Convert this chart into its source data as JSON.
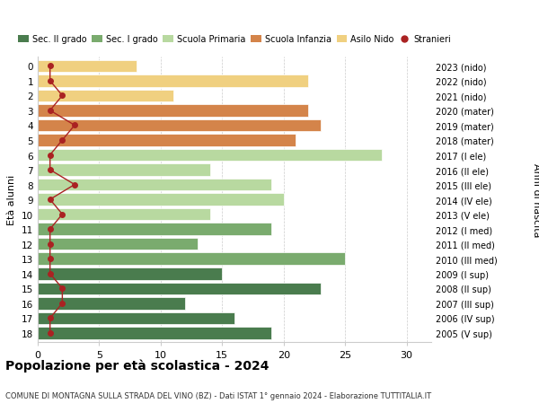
{
  "ages": [
    18,
    17,
    16,
    15,
    14,
    13,
    12,
    11,
    10,
    9,
    8,
    7,
    6,
    5,
    4,
    3,
    2,
    1,
    0
  ],
  "year_labels": [
    "2005 (V sup)",
    "2006 (IV sup)",
    "2007 (III sup)",
    "2008 (II sup)",
    "2009 (I sup)",
    "2010 (III med)",
    "2011 (II med)",
    "2012 (I med)",
    "2013 (V ele)",
    "2014 (IV ele)",
    "2015 (III ele)",
    "2016 (II ele)",
    "2017 (I ele)",
    "2018 (mater)",
    "2019 (mater)",
    "2020 (mater)",
    "2021 (nido)",
    "2022 (nido)",
    "2023 (nido)"
  ],
  "bar_values": [
    19,
    16,
    12,
    23,
    15,
    25,
    13,
    19,
    14,
    20,
    19,
    14,
    28,
    21,
    23,
    22,
    11,
    22,
    8
  ],
  "stranieri_values": [
    1,
    1,
    2,
    2,
    1,
    1,
    1,
    1,
    2,
    1,
    3,
    1,
    1,
    2,
    3,
    1,
    2,
    1,
    1
  ],
  "bar_colors": [
    "#4a7c4e",
    "#4a7c4e",
    "#4a7c4e",
    "#4a7c4e",
    "#4a7c4e",
    "#7aab6e",
    "#7aab6e",
    "#7aab6e",
    "#b8d9a0",
    "#b8d9a0",
    "#b8d9a0",
    "#b8d9a0",
    "#b8d9a0",
    "#d4844a",
    "#d4844a",
    "#d4844a",
    "#f0d080",
    "#f0d080",
    "#f0d080"
  ],
  "legend_labels": [
    "Sec. II grado",
    "Sec. I grado",
    "Scuola Primaria",
    "Scuola Infanzia",
    "Asilo Nido",
    "Stranieri"
  ],
  "legend_colors": [
    "#4a7c4e",
    "#7aab6e",
    "#b8d9a0",
    "#d4844a",
    "#f0d080",
    "#aa2222"
  ],
  "title": "Popolazione per età scolastica - 2024",
  "subtitle": "COMUNE DI MONTAGNA SULLA STRADA DEL VINO (BZ) - Dati ISTAT 1° gennaio 2024 - Elaborazione TUTTITALIA.IT",
  "ylabel": "Età alunni",
  "right_ylabel": "Anni di nascita",
  "xlabel_ticks": [
    0,
    5,
    10,
    15,
    20,
    25,
    30
  ],
  "xlim": [
    0,
    32
  ],
  "stranieri_color": "#aa2222",
  "bg_color": "#ffffff"
}
